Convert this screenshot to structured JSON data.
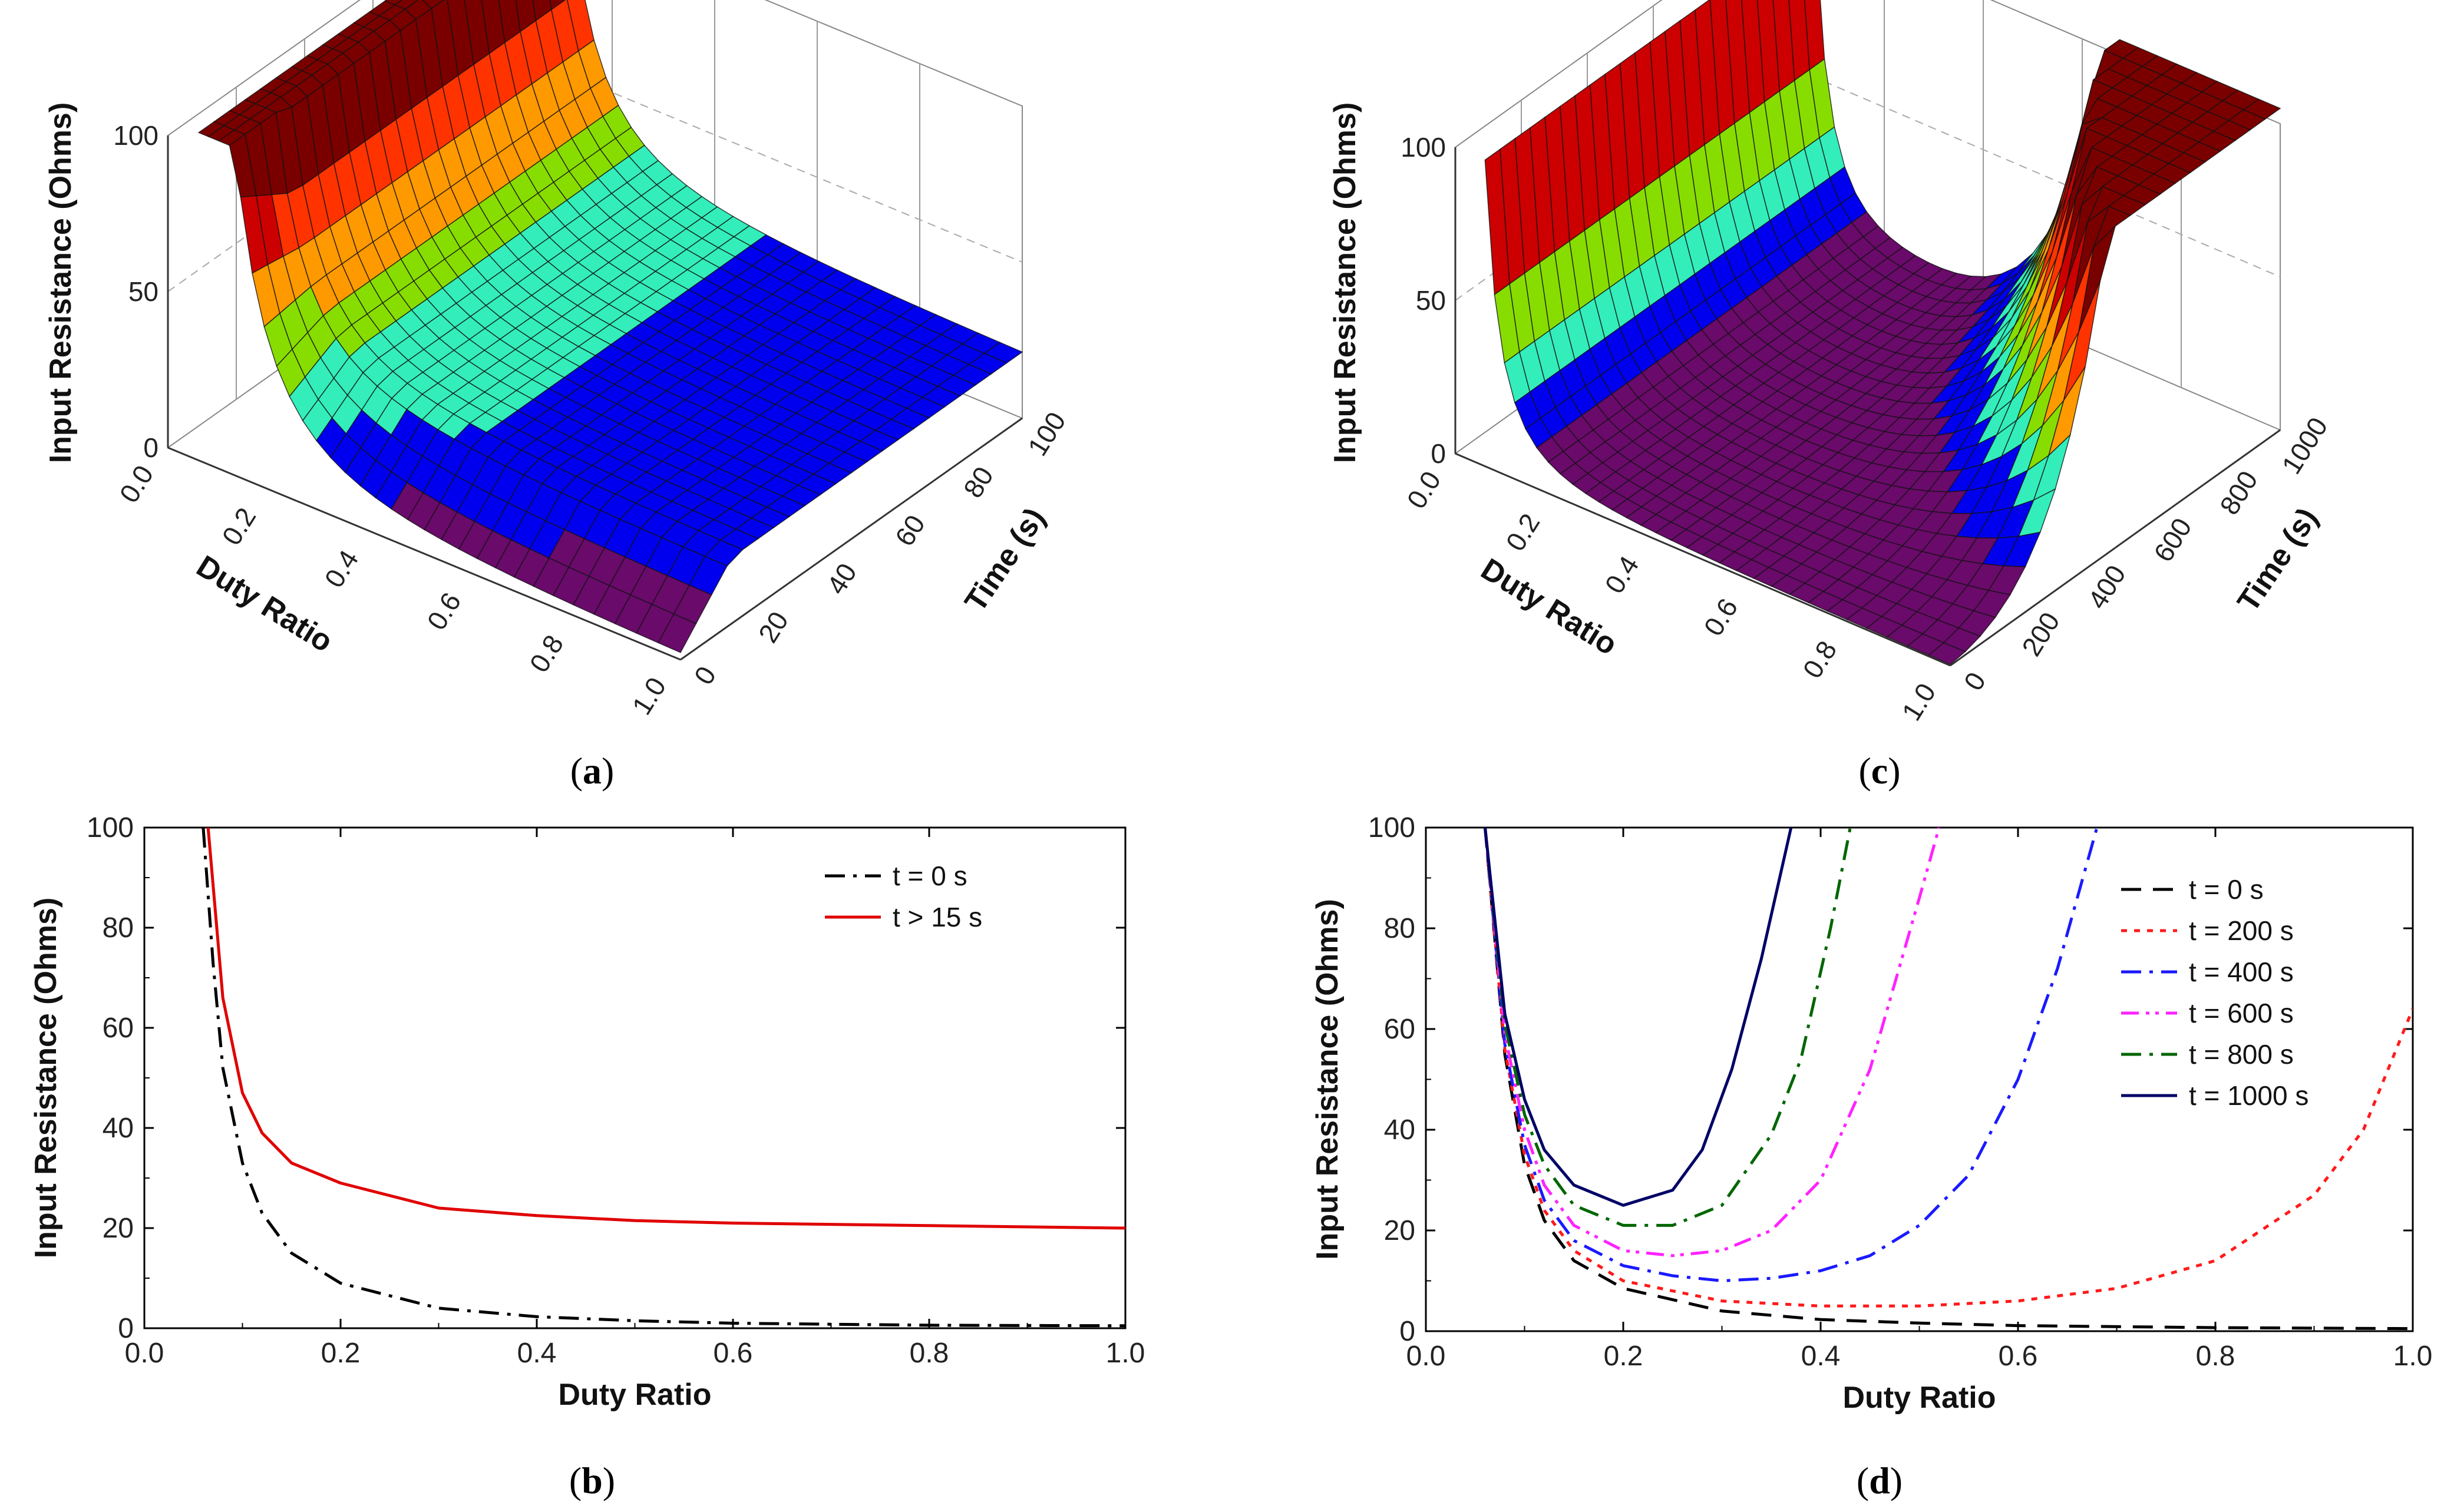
{
  "panel_labels": {
    "a": "a",
    "b": "b",
    "c": "c",
    "d": "d"
  },
  "panel_labels_open": "(",
  "panel_labels_close": ")",
  "colors": {
    "band": [
      "#6a0a6a",
      "#0000ee",
      "#33eebb",
      "#88dd00",
      "#ff9900",
      "#ff3300",
      "#cc0000",
      "#7a0000"
    ],
    "t0": "#000000",
    "t15": "#e00000",
    "t200": "#ff1a1a",
    "t400": "#1a1aff",
    "t600": "#ff22ff",
    "t800": "#006600",
    "t1000": "#000066"
  },
  "chart_data": [
    {
      "id": "a",
      "type": "surface3d",
      "x_label": "Duty Ratio",
      "y_label": "Time (s)",
      "z_label": "Input Resistance (Ohms)",
      "x_ticks": [
        "0.0",
        "0.2",
        "0.4",
        "0.6",
        "0.8",
        "1.0"
      ],
      "y_ticks": [
        "0",
        "20",
        "40",
        "60",
        "80",
        "100"
      ],
      "z_ticks": [
        "0",
        "50",
        "100"
      ],
      "xlim": [
        0,
        1
      ],
      "ylim": [
        0,
        100
      ],
      "zlim": [
        0,
        100
      ]
    },
    {
      "id": "c",
      "type": "surface3d",
      "x_label": "Duty Ratio",
      "y_label": "Time (s)",
      "z_label": "Input Resistance (Ohms)",
      "x_ticks": [
        "0.0",
        "0.2",
        "0.4",
        "0.6",
        "0.8",
        "1.0"
      ],
      "y_ticks": [
        "0",
        "200",
        "400",
        "600",
        "800",
        "1000"
      ],
      "z_ticks": [
        "0",
        "50",
        "100"
      ],
      "xlim": [
        0,
        1
      ],
      "ylim": [
        0,
        1000
      ],
      "zlim": [
        0,
        100
      ]
    },
    {
      "id": "b",
      "type": "line",
      "xlabel": "Duty Ratio",
      "ylabel": "Input Resistance (Ohms)",
      "xlim": [
        0,
        1
      ],
      "ylim": [
        0,
        100
      ],
      "x_ticks": [
        "0.0",
        "0.2",
        "0.4",
        "0.6",
        "0.8",
        "1.0"
      ],
      "y_ticks": [
        "0",
        "20",
        "40",
        "60",
        "80",
        "100"
      ],
      "legend": "top-right",
      "series": [
        {
          "name": "t = 0 s",
          "style": "dashdot",
          "color": "#000000",
          "x": [
            0.06,
            0.07,
            0.08,
            0.1,
            0.12,
            0.15,
            0.2,
            0.3,
            0.4,
            0.5,
            0.6,
            0.8,
            1.0
          ],
          "y": [
            100,
            73,
            52,
            33,
            23,
            15,
            9,
            4,
            2.3,
            1.5,
            1,
            0.6,
            0.5
          ]
        },
        {
          "name": "t > 15 s",
          "style": "solid",
          "color": "#e00000",
          "x": [
            0.065,
            0.08,
            0.1,
            0.12,
            0.15,
            0.2,
            0.3,
            0.4,
            0.5,
            0.6,
            0.8,
            1.0
          ],
          "y": [
            100,
            66,
            47,
            39,
            33,
            29,
            24,
            22.5,
            21.5,
            21,
            20.5,
            20
          ]
        }
      ]
    },
    {
      "id": "d",
      "type": "line",
      "xlabel": "Duty Ratio",
      "ylabel": "Input Resistance (Ohms)",
      "xlim": [
        0,
        1
      ],
      "ylim": [
        0,
        100
      ],
      "x_ticks": [
        "0.0",
        "0.2",
        "0.4",
        "0.6",
        "0.8",
        "1.0"
      ],
      "y_ticks": [
        "0",
        "20",
        "40",
        "60",
        "80",
        "100"
      ],
      "legend": "right",
      "series": [
        {
          "name": "t = 0 s",
          "style": "dash",
          "color": "#000000",
          "x": [
            0.06,
            0.08,
            0.1,
            0.12,
            0.15,
            0.2,
            0.3,
            0.4,
            0.5,
            0.6,
            0.8,
            1.0
          ],
          "y": [
            100,
            55,
            33,
            22,
            14,
            8.5,
            4,
            2.3,
            1.6,
            1.1,
            0.7,
            0.5
          ]
        },
        {
          "name": "t = 200 s",
          "style": "dot",
          "color": "#ff1a1a",
          "x": [
            0.06,
            0.08,
            0.1,
            0.12,
            0.15,
            0.2,
            0.3,
            0.4,
            0.5,
            0.6,
            0.7,
            0.8,
            0.9,
            0.95,
            1.0
          ],
          "y": [
            100,
            56,
            35,
            24,
            16,
            10,
            6,
            5,
            5,
            6,
            8.5,
            14,
            27,
            40,
            64
          ]
        },
        {
          "name": "t = 400 s",
          "style": "dashdot",
          "color": "#1a1aff",
          "x": [
            0.06,
            0.08,
            0.1,
            0.12,
            0.15,
            0.2,
            0.25,
            0.3,
            0.35,
            0.4,
            0.45,
            0.5,
            0.55,
            0.6,
            0.64,
            0.68
          ],
          "y": [
            100,
            57,
            37,
            26,
            18,
            13,
            11,
            10,
            10.5,
            12,
            15,
            21,
            31,
            50,
            72,
            100
          ]
        },
        {
          "name": "t = 600 s",
          "style": "dashdotdot",
          "color": "#ff22ff",
          "x": [
            0.06,
            0.08,
            0.1,
            0.12,
            0.15,
            0.2,
            0.25,
            0.3,
            0.35,
            0.4,
            0.45,
            0.5,
            0.52
          ],
          "y": [
            100,
            59,
            40,
            29,
            21,
            16,
            15,
            16,
            20,
            30,
            52,
            86,
            100
          ]
        },
        {
          "name": "t = 800 s",
          "style": "dashdot",
          "color": "#006600",
          "x": [
            0.06,
            0.08,
            0.1,
            0.12,
            0.15,
            0.2,
            0.25,
            0.3,
            0.35,
            0.38,
            0.41,
            0.43
          ],
          "y": [
            100,
            61,
            43,
            33,
            25,
            21,
            21,
            25,
            39,
            54,
            80,
            100
          ]
        },
        {
          "name": "t = 1000 s",
          "style": "solid",
          "color": "#000066",
          "x": [
            0.06,
            0.08,
            0.1,
            0.12,
            0.15,
            0.2,
            0.25,
            0.28,
            0.31,
            0.34,
            0.37
          ],
          "y": [
            100,
            63,
            46,
            36,
            29,
            25,
            28,
            36,
            52,
            74,
            100
          ]
        }
      ]
    }
  ]
}
